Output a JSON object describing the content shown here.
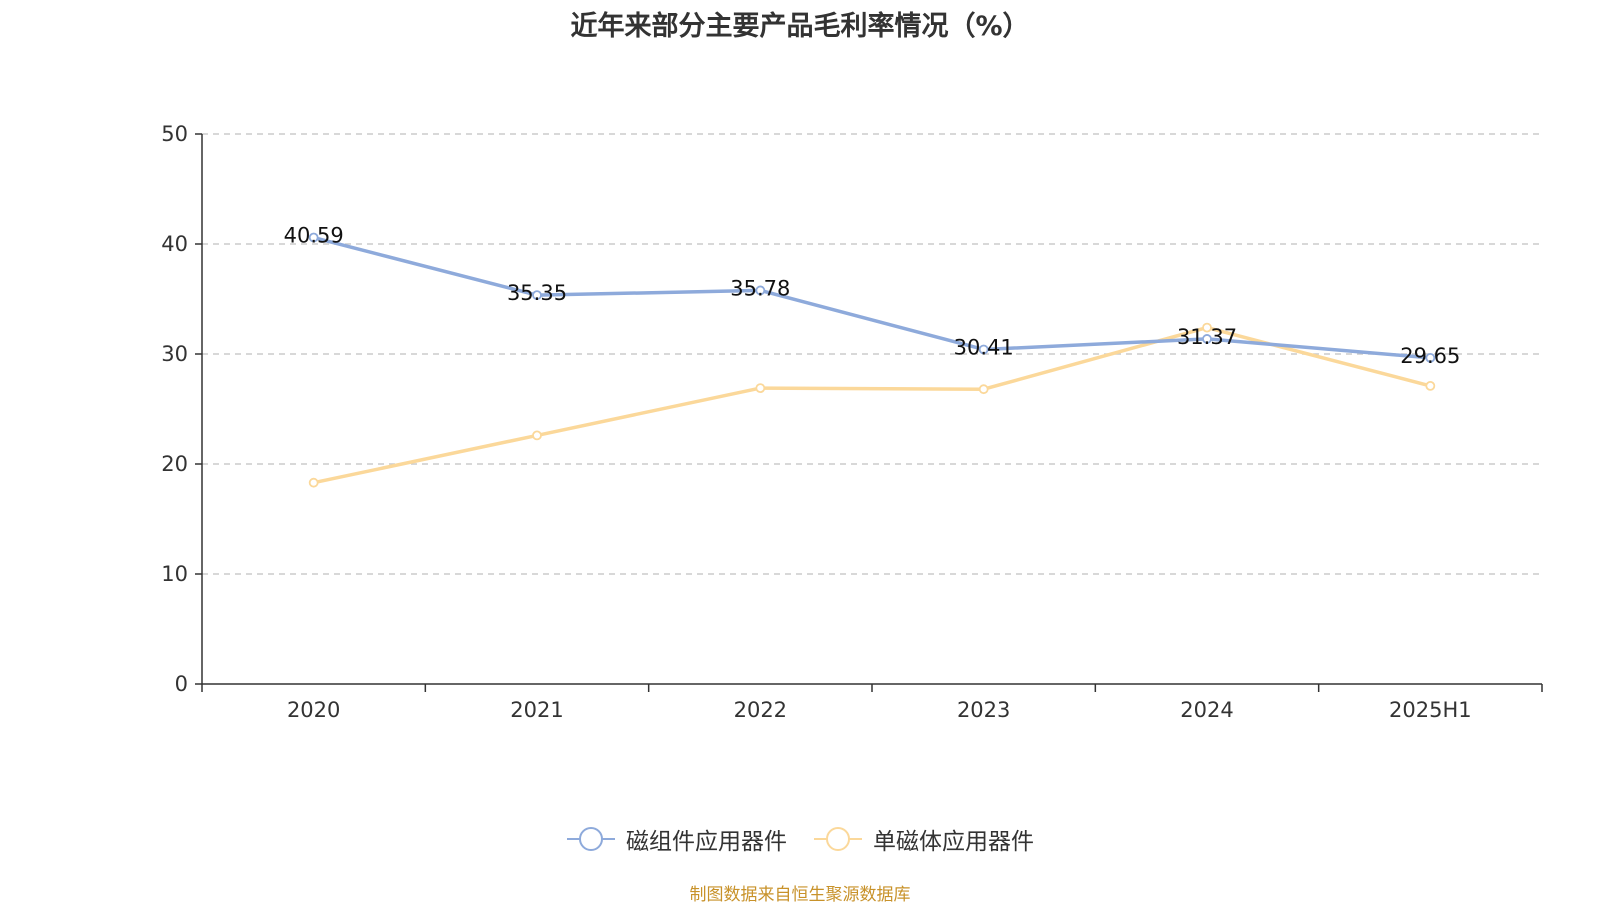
{
  "chart_data": {
    "type": "line",
    "title": "近年来部分主要产品毛利率情况（%）",
    "categories": [
      "2020",
      "2021",
      "2022",
      "2023",
      "2024",
      "2025H1"
    ],
    "ylim": [
      0,
      50
    ],
    "yticks": [
      0,
      10,
      20,
      30,
      40,
      50
    ],
    "grid": true,
    "legend_position": "bottom",
    "series": [
      {
        "name": "磁组件应用器件",
        "color": "#8eaadb",
        "values": [
          40.59,
          35.35,
          35.78,
          30.41,
          31.37,
          29.65
        ],
        "show_labels": true
      },
      {
        "name": "单磁体应用器件",
        "color": "#fbd89a",
        "values": [
          18.3,
          22.6,
          26.9,
          26.8,
          32.4,
          27.1
        ],
        "show_labels": false
      }
    ]
  },
  "source": "制图数据来自恒生聚源数据库"
}
